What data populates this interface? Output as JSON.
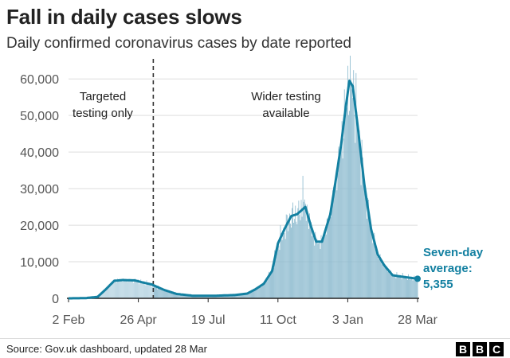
{
  "header": {
    "title": "Fall in daily cases slows",
    "subtitle": "Daily confirmed coronavirus cases by date reported"
  },
  "footer": {
    "source": "Source: Gov.uk dashboard, updated 28 Mar",
    "logo_letters": [
      "B",
      "B",
      "C"
    ]
  },
  "colors": {
    "bars": "#8fbcd0",
    "bars_early": "#b5d3e1",
    "line": "#1380A1",
    "grid": "#dddddd",
    "axis": "#222222"
  },
  "chart_data": {
    "type": "bar",
    "series_line_label": "Seven-day average",
    "x_ticks": [
      "2 Feb",
      "26 Apr",
      "19 Jul",
      "11 Oct",
      "3 Jan",
      "28 Mar"
    ],
    "x_tick_day_index": [
      0,
      84,
      168,
      252,
      336,
      420
    ],
    "y_ticks": [
      "0",
      "10,000",
      "20,000",
      "30,000",
      "40,000",
      "50,000",
      "60,000"
    ],
    "ylim": [
      0,
      62000
    ],
    "grid": true,
    "divider_day_index": 102,
    "annotations": [
      {
        "lines": [
          "Targeted",
          "testing only"
        ]
      },
      {
        "lines": [
          "Wider testing",
          "available"
        ]
      }
    ],
    "callout": {
      "lines": [
        "Seven-day",
        "average:",
        "5,355"
      ],
      "value": 5355
    },
    "seven_day_average_anchors": [
      {
        "day": 0,
        "value": 0
      },
      {
        "day": 20,
        "value": 50
      },
      {
        "day": 35,
        "value": 400
      },
      {
        "day": 45,
        "value": 2500
      },
      {
        "day": 55,
        "value": 4800
      },
      {
        "day": 65,
        "value": 5000
      },
      {
        "day": 80,
        "value": 4900
      },
      {
        "day": 90,
        "value": 4300
      },
      {
        "day": 100,
        "value": 3800
      },
      {
        "day": 115,
        "value": 2300
      },
      {
        "day": 130,
        "value": 1200
      },
      {
        "day": 150,
        "value": 700
      },
      {
        "day": 175,
        "value": 700
      },
      {
        "day": 200,
        "value": 900
      },
      {
        "day": 215,
        "value": 1300
      },
      {
        "day": 225,
        "value": 2500
      },
      {
        "day": 235,
        "value": 4000
      },
      {
        "day": 245,
        "value": 7500
      },
      {
        "day": 252,
        "value": 15000
      },
      {
        "day": 260,
        "value": 19000
      },
      {
        "day": 268,
        "value": 22500
      },
      {
        "day": 275,
        "value": 23000
      },
      {
        "day": 280,
        "value": 24000
      },
      {
        "day": 285,
        "value": 25000
      },
      {
        "day": 292,
        "value": 19500
      },
      {
        "day": 298,
        "value": 15500
      },
      {
        "day": 305,
        "value": 15500
      },
      {
        "day": 315,
        "value": 23000
      },
      {
        "day": 322,
        "value": 33000
      },
      {
        "day": 328,
        "value": 42000
      },
      {
        "day": 334,
        "value": 53000
      },
      {
        "day": 338,
        "value": 59500
      },
      {
        "day": 342,
        "value": 58000
      },
      {
        "day": 348,
        "value": 47000
      },
      {
        "day": 356,
        "value": 31000
      },
      {
        "day": 364,
        "value": 19000
      },
      {
        "day": 372,
        "value": 12000
      },
      {
        "day": 380,
        "value": 9000
      },
      {
        "day": 390,
        "value": 6300
      },
      {
        "day": 405,
        "value": 5800
      },
      {
        "day": 420,
        "value": 5355
      }
    ]
  }
}
